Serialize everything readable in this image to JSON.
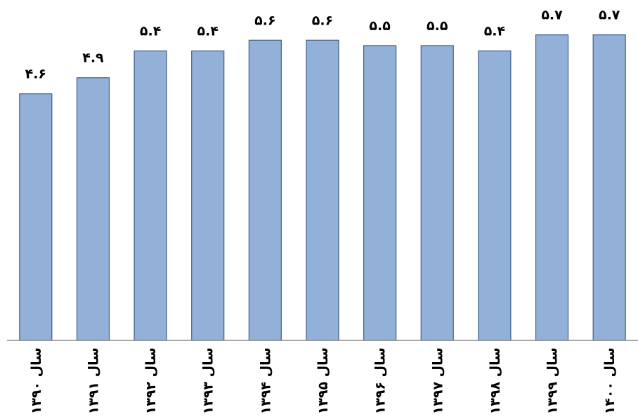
{
  "chart_data": {
    "type": "bar",
    "categories": [
      "سال ۱۳۹۰",
      "سال ۱۳۹۱",
      "سال ۱۳۹۲",
      "سال ۱۳۹۳",
      "سال ۱۳۹۴",
      "سال ۱۳۹۵",
      "سال ۱۳۹۶",
      "سال ۱۳۹۷",
      "سال ۱۳۹۸",
      "سال ۱۳۹۹",
      "سال ۱۴۰۰"
    ],
    "values": [
      4.6,
      4.9,
      5.4,
      5.4,
      5.6,
      5.6,
      5.5,
      5.5,
      5.4,
      5.7,
      5.7
    ],
    "value_labels": [
      "۴.۶",
      "۴.۹",
      "۵.۴",
      "۵.۴",
      "۵.۶",
      "۵.۶",
      "۵.۵",
      "۵.۵",
      "۵.۴",
      "۵.۷",
      "۵.۷"
    ],
    "color": "#93b0d8",
    "ylim": [
      0,
      6.35
    ]
  }
}
